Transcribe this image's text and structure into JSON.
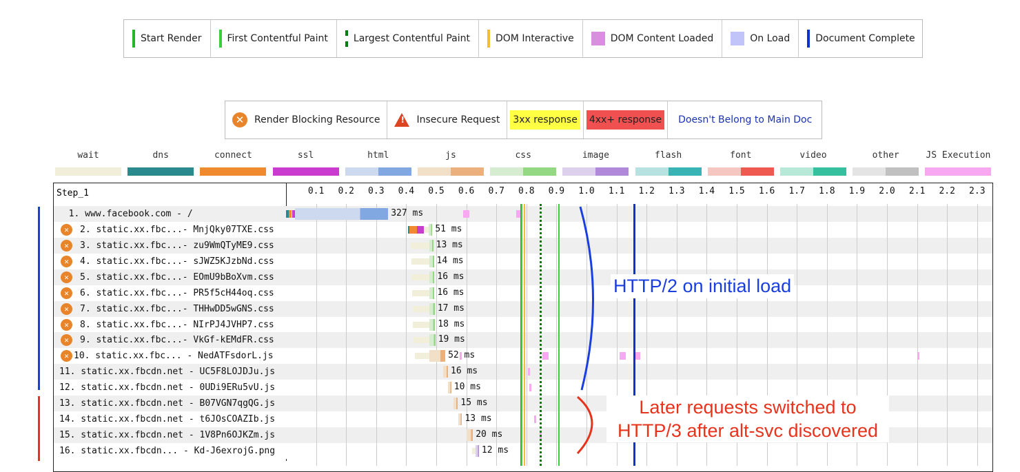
{
  "legend_top": [
    {
      "label": "Start Render",
      "color": "#28b428",
      "style": "solid"
    },
    {
      "label": "First Contentful Paint",
      "color": "#3ccc3c",
      "style": "solid"
    },
    {
      "label": "Largest Contentful Paint",
      "color": "#0a7a0a",
      "style": "dashed"
    },
    {
      "label": "DOM Interactive",
      "color": "#f0c030",
      "style": "solid"
    },
    {
      "label": "DOM Content Loaded",
      "color": "#d98ee0",
      "style": "block"
    },
    {
      "label": "On Load",
      "color": "#c0c4f8",
      "style": "block"
    },
    {
      "label": "Document Complete",
      "color": "#1030d0",
      "style": "solid"
    }
  ],
  "legend_flags": {
    "render_blocking": "Render Blocking Resource",
    "insecure": "Insecure Request",
    "r3xx": "3xx response",
    "r4xx": "4xx+ response",
    "not_main": "Doesn't Belong to Main Doc"
  },
  "legend_types": [
    {
      "label": "wait",
      "c1": "#f1efd9",
      "c2": "#f1efd9"
    },
    {
      "label": "dns",
      "c1": "#2b8a8e",
      "c2": "#2b8a8e"
    },
    {
      "label": "connect",
      "c1": "#f08a2e",
      "c2": "#f08a2e"
    },
    {
      "label": "ssl",
      "c1": "#c93ccf",
      "c2": "#c93ccf"
    },
    {
      "label": "html",
      "c1": "#cdd9ee",
      "c2": "#82a8e2"
    },
    {
      "label": "js",
      "c1": "#f2dfc8",
      "c2": "#eab07e"
    },
    {
      "label": "css",
      "c1": "#d6ecd0",
      "c2": "#94d884"
    },
    {
      "label": "image",
      "c1": "#ddd0ec",
      "c2": "#b08ad8"
    },
    {
      "label": "flash",
      "c1": "#b8e2e2",
      "c2": "#38b4b4"
    },
    {
      "label": "font",
      "c1": "#f6c6c0",
      "c2": "#ee5a50"
    },
    {
      "label": "video",
      "c1": "#b8e8d8",
      "c2": "#36c0a0"
    },
    {
      "label": "other",
      "c1": "#e4e4e4",
      "c2": "#c0c0c0"
    },
    {
      "label": "JS Execution",
      "c1": "#f8a8f0",
      "c2": "#f8a8f0"
    }
  ],
  "chart_data": {
    "type": "waterfall",
    "step": "Step_1",
    "xlabel": "",
    "unit": "s",
    "xlim": [
      0,
      2.35
    ],
    "ticks": [
      "0.1",
      "0.2",
      "0.3",
      "0.4",
      "0.5",
      "0.6",
      "0.7",
      "0.8",
      "0.9",
      "1.0",
      "1.1",
      "1.2",
      "1.3",
      "1.4",
      "1.5",
      "1.6",
      "1.7",
      "1.8",
      "1.9",
      "2.0",
      "2.1",
      "2.2",
      "2.3"
    ],
    "requests": [
      {
        "label": "  1. www.facebook.com - /",
        "blocking": false,
        "type": "html",
        "wait_start": 0.0,
        "start": 0.03,
        "end": 0.34,
        "duration": "327 ms",
        "js": [
          [
            0.59,
            0.61
          ],
          [
            0.765,
            0.785
          ]
        ]
      },
      {
        "label": "2. static.xx.fbc...- MnjQky07TXE.css",
        "blocking": true,
        "type": "css",
        "wait_start": 0.405,
        "start": 0.475,
        "end": 0.487,
        "duration": "51 ms",
        "conn": true
      },
      {
        "label": "3. static.xx.fbc...- zu9WmQTyME9.css",
        "blocking": true,
        "type": "css",
        "wait_start": 0.415,
        "start": 0.477,
        "end": 0.49,
        "duration": "13 ms"
      },
      {
        "label": "4. static.xx.fbc...- sJWZ5KJzbNd.css",
        "blocking": true,
        "type": "css",
        "wait_start": 0.418,
        "start": 0.478,
        "end": 0.492,
        "duration": "14 ms"
      },
      {
        "label": "5. static.xx.fbc...- EOmU9bBoXvm.css",
        "blocking": true,
        "type": "css",
        "wait_start": 0.418,
        "start": 0.478,
        "end": 0.494,
        "duration": "16 ms"
      },
      {
        "label": "6. static.xx.fbc...- PR5f5cH44oq.css",
        "blocking": true,
        "type": "css",
        "wait_start": 0.42,
        "start": 0.478,
        "end": 0.494,
        "duration": "16 ms"
      },
      {
        "label": "7. static.xx.fbc...- THHwDD5wGNS.css",
        "blocking": true,
        "type": "css",
        "wait_start": 0.422,
        "start": 0.478,
        "end": 0.495,
        "duration": "17 ms"
      },
      {
        "label": "8. static.xx.fbc...- NIrPJ4JVHP7.css",
        "blocking": true,
        "type": "css",
        "wait_start": 0.422,
        "start": 0.478,
        "end": 0.496,
        "duration": "18 ms"
      },
      {
        "label": "9. static.xx.fbc...- VkGf-kEMdFR.css",
        "blocking": true,
        "type": "css",
        "wait_start": 0.425,
        "start": 0.478,
        "end": 0.497,
        "duration": "19 ms"
      },
      {
        "label": "10. static.xx.fbc... - NedATFsdorL.js",
        "blocking": true,
        "type": "js",
        "wait_start": 0.43,
        "start": 0.478,
        "end": 0.53,
        "duration": "52 ms",
        "js": [
          [
            0.578,
            0.585
          ],
          [
            0.853,
            0.875
          ],
          [
            1.11,
            1.13
          ],
          [
            1.16,
            1.18
          ],
          [
            2.1,
            2.105
          ]
        ]
      },
      {
        "label": "11. static.xx.fbcdn.net - UC5F8LOJDJu.js",
        "blocking": false,
        "type": "js",
        "wait_start": 0.523,
        "start": 0.523,
        "end": 0.539,
        "duration": "16 ms",
        "js": [
          [
            0.805,
            0.81
          ]
        ]
      },
      {
        "label": "12. static.xx.fbcdn.net - 0UDi9ERu5vU.js",
        "blocking": false,
        "type": "js",
        "wait_start": 0.54,
        "start": 0.54,
        "end": 0.55,
        "duration": "10 ms",
        "js": [
          [
            0.81,
            0.814
          ]
        ]
      },
      {
        "label": "13. static.xx.fbcdn.net - B07VGN7qgQG.js",
        "blocking": false,
        "type": "js",
        "wait_start": 0.557,
        "start": 0.557,
        "end": 0.572,
        "duration": "15 ms"
      },
      {
        "label": "14. static.xx.fbcdn.net - t6JOsCOAZIb.js",
        "blocking": false,
        "type": "js",
        "wait_start": 0.573,
        "start": 0.573,
        "end": 0.586,
        "duration": "13 ms",
        "js": [
          [
            0.825,
            0.829
          ]
        ]
      },
      {
        "label": "15. static.xx.fbcdn.net - 1V8Pn6OJKZm.js",
        "blocking": false,
        "type": "js",
        "wait_start": 0.602,
        "start": 0.602,
        "end": 0.622,
        "duration": "20 ms",
        "js": [
          [
            0.843,
            0.85
          ]
        ]
      },
      {
        "label": "16. static.xx.fbcdn... - Kd-J6exrojG.png",
        "blocking": false,
        "type": "image",
        "wait_start": 0.62,
        "start": 0.63,
        "end": 0.642,
        "duration": "12 ms"
      }
    ],
    "markers": [
      {
        "name": "Start Render",
        "t": 0.78,
        "color": "#28b428",
        "style": "solid"
      },
      {
        "name": "First Contentful Paint",
        "t": 0.782,
        "color": "#3ccc3c",
        "style": "solid"
      },
      {
        "name": "DOM Interactive",
        "t": 0.792,
        "color": "#f0c030",
        "style": "solid"
      },
      {
        "name": "Largest Contentful Paint",
        "t": 0.845,
        "color": "#0a7a0a",
        "style": "dashed"
      },
      {
        "name": "First Contentful Paint",
        "t": 0.905,
        "color": "#3ccc3c",
        "style": "solid"
      },
      {
        "name": "Document Complete",
        "t": 1.155,
        "color": "#1030d0",
        "style": "solid"
      }
    ]
  },
  "annotations": {
    "http2": "HTTP/2 on initial load",
    "http3_line1": "Later requests switched to",
    "http3_line2": "HTTP/3 after alt-svc discovered",
    "http2_color": "#1a3ee0",
    "http3_color": "#e8331c"
  }
}
